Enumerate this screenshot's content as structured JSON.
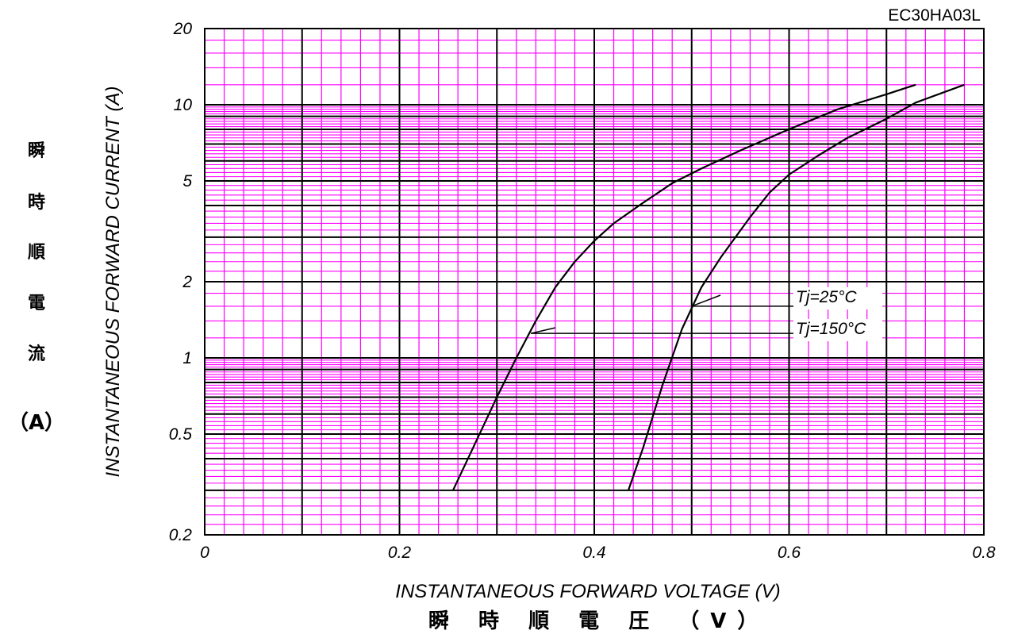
{
  "chart_data": {
    "type": "line",
    "part_number": "EC30HA03L",
    "xlabel": "INSTANTANEOUS FORWARD VOLTAGE (V)",
    "xlabel_jp": "瞬 時 順 電 圧 （V）",
    "ylabel": "INSTANTANEOUS FORWARD CURRENT (A)",
    "ylabel_jp": [
      "瞬",
      "時",
      "順",
      "電",
      "流"
    ],
    "ylabel_jp_unit": "（A）",
    "xlim": [
      0,
      0.8
    ],
    "ylim": [
      0.2,
      20
    ],
    "yscale": "log",
    "grid": true,
    "grid_color": "#ff00ff",
    "major_grid_color": "#000000",
    "x_ticks": [
      "0",
      "0.2",
      "0.4",
      "0.6",
      "0.8"
    ],
    "y_ticks": [
      "0.2",
      "0.5",
      "1",
      "2",
      "5",
      "10",
      "20"
    ],
    "series": [
      {
        "name": "Tj=150°C",
        "x": [
          0.255,
          0.28,
          0.3,
          0.32,
          0.34,
          0.36,
          0.38,
          0.4,
          0.42,
          0.45,
          0.48,
          0.51,
          0.55,
          0.6,
          0.65,
          0.7,
          0.73
        ],
        "y": [
          0.3,
          0.48,
          0.7,
          1.0,
          1.4,
          1.9,
          2.4,
          2.9,
          3.4,
          4.1,
          4.9,
          5.6,
          6.6,
          8.0,
          9.6,
          11.0,
          12.0
        ]
      },
      {
        "name": "Tj=25°C",
        "x": [
          0.435,
          0.45,
          0.47,
          0.49,
          0.51,
          0.53,
          0.56,
          0.58,
          0.6,
          0.63,
          0.66,
          0.7,
          0.73,
          0.78
        ],
        "y": [
          0.3,
          0.44,
          0.78,
          1.3,
          1.9,
          2.5,
          3.6,
          4.5,
          5.3,
          6.3,
          7.4,
          8.8,
          10.2,
          12.0
        ]
      }
    ],
    "annotations": [
      {
        "text": "Tj=25°C",
        "series": "Tj=25°C",
        "at_x": 0.5,
        "at_y": 1.6
      },
      {
        "text": "Tj=150°C",
        "series": "Tj=150°C",
        "at_x": 0.335,
        "at_y": 1.25
      }
    ]
  }
}
